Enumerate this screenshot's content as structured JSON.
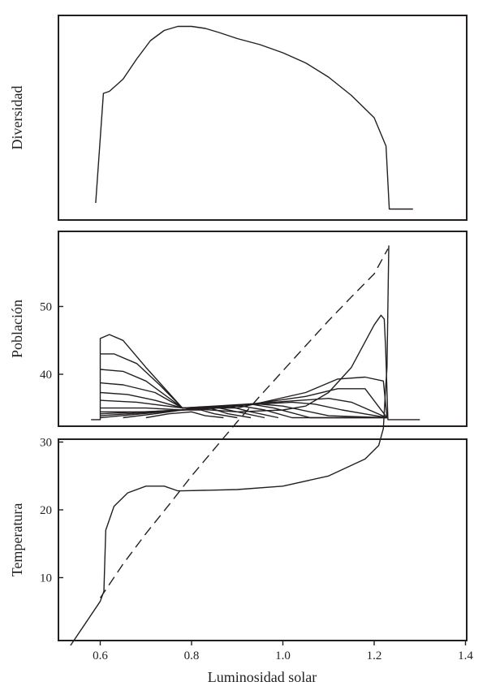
{
  "chart_data": [
    {
      "type": "line",
      "ylabel": "Diversidad",
      "xlabel": "",
      "xlim": [
        0.5,
        1.4
      ],
      "series": [
        {
          "style": "solid",
          "x": [
            0.59,
            0.607,
            0.62,
            0.65,
            0.68,
            0.71,
            0.74,
            0.77,
            0.8,
            0.83,
            0.86,
            0.9,
            0.95,
            1.0,
            1.05,
            1.1,
            1.15,
            1.2,
            1.226,
            1.233,
            1.25,
            1.285
          ],
          "y": [
            0.08,
            0.62,
            0.63,
            0.69,
            0.79,
            0.88,
            0.93,
            0.95,
            0.95,
            0.94,
            0.92,
            0.89,
            0.86,
            0.82,
            0.77,
            0.7,
            0.61,
            0.5,
            0.36,
            0.05,
            0.05,
            0.05
          ]
        }
      ]
    },
    {
      "type": "line",
      "ylabel": "Población",
      "xlabel": "",
      "xlim": [
        0.5,
        1.4
      ],
      "series": [
        {
          "x": [
            0.58,
            0.6,
            0.6,
            0.62,
            0.65,
            0.7,
            0.78,
            0.9,
            1.0,
            1.05,
            1.1,
            1.15,
            1.2,
            1.215,
            1.222,
            1.225,
            1.23,
            1.3
          ],
          "y": [
            0.03,
            0.03,
            0.45,
            0.47,
            0.44,
            0.3,
            0.09,
            0.07,
            0.08,
            0.1,
            0.17,
            0.3,
            0.52,
            0.57,
            0.55,
            0.4,
            0.03,
            0.03
          ]
        },
        {
          "x": [
            0.6,
            0.63,
            0.68,
            0.73,
            0.78,
            0.9,
            1.05,
            1.12,
            1.18,
            1.22,
            1.228
          ],
          "y": [
            0.37,
            0.37,
            0.32,
            0.21,
            0.09,
            0.09,
            0.17,
            0.24,
            0.25,
            0.23,
            0.04
          ]
        },
        {
          "x": [
            0.6,
            0.65,
            0.7,
            0.78,
            0.9,
            1.05,
            1.12,
            1.18,
            1.228
          ],
          "y": [
            0.29,
            0.28,
            0.23,
            0.09,
            0.1,
            0.15,
            0.19,
            0.19,
            0.04
          ]
        },
        {
          "x": [
            0.6,
            0.65,
            0.72,
            0.78,
            0.92,
            1.04,
            1.1,
            1.15,
            1.228
          ],
          "y": [
            0.22,
            0.21,
            0.17,
            0.09,
            0.11,
            0.13,
            0.14,
            0.12,
            0.04
          ]
        },
        {
          "x": [
            0.6,
            0.66,
            0.72,
            0.78,
            0.95,
            1.02,
            1.07,
            1.13,
            1.228
          ],
          "y": [
            0.17,
            0.16,
            0.13,
            0.09,
            0.11,
            0.12,
            0.11,
            0.08,
            0.04
          ]
        },
        {
          "x": [
            0.6,
            0.68,
            0.78,
            0.95,
            1.0,
            1.1,
            1.228
          ],
          "y": [
            0.13,
            0.12,
            0.09,
            0.11,
            0.1,
            0.05,
            0.04
          ]
        },
        {
          "x": [
            0.6,
            0.7,
            0.78,
            0.93,
            0.98,
            1.06,
            1.228
          ],
          "y": [
            0.09,
            0.09,
            0.08,
            0.11,
            0.09,
            0.04,
            0.04
          ]
        },
        {
          "x": [
            0.6,
            0.7,
            0.78,
            0.91,
            0.96,
            1.02,
            1.228
          ],
          "y": [
            0.07,
            0.07,
            0.08,
            0.1,
            0.08,
            0.04,
            0.04
          ]
        },
        {
          "x": [
            0.6,
            0.78,
            0.88,
            0.93,
            0.99
          ],
          "y": [
            0.06,
            0.08,
            0.1,
            0.07,
            0.04
          ]
        },
        {
          "x": [
            0.6,
            0.78,
            0.86,
            0.9,
            0.96
          ],
          "y": [
            0.05,
            0.08,
            0.09,
            0.07,
            0.04
          ]
        },
        {
          "x": [
            0.6,
            0.78,
            0.84,
            0.88,
            0.93
          ],
          "y": [
            0.04,
            0.08,
            0.09,
            0.06,
            0.04
          ]
        },
        {
          "x": [
            0.65,
            0.72,
            0.78,
            0.82,
            0.85,
            0.9
          ],
          "y": [
            0.04,
            0.06,
            0.08,
            0.08,
            0.06,
            0.04
          ]
        },
        {
          "x": [
            0.7,
            0.75,
            0.8,
            0.83,
            0.87
          ],
          "y": [
            0.04,
            0.06,
            0.07,
            0.05,
            0.04
          ]
        }
      ]
    },
    {
      "type": "line",
      "ylabel": "Temperatura",
      "xlabel": "Luminosidad solar",
      "xlim": [
        0.5,
        1.4
      ],
      "ylim": [
        0,
        59
      ],
      "xticks": [
        "0.6",
        "0.8",
        "1.0",
        "1.2",
        "1.4"
      ],
      "yticks": [
        "10",
        "20",
        "30",
        "40",
        "50"
      ],
      "series": [
        {
          "style": "solid",
          "x": [
            0.535,
            0.57,
            0.6,
            0.608,
            0.612,
            0.63,
            0.66,
            0.7,
            0.74,
            0.77,
            0.78,
            0.9,
            1.0,
            1.1,
            1.18,
            1.21,
            1.22,
            1.225,
            1.228,
            1.23,
            1.232
          ],
          "y": [
            0,
            3.5,
            6.5,
            8,
            17,
            20.5,
            22.5,
            23.5,
            23.5,
            22.8,
            22.8,
            23,
            23.5,
            25,
            27.5,
            29.5,
            32,
            38,
            41,
            50,
            59
          ]
        },
        {
          "style": "dashed",
          "x": [
            0.6,
            0.65,
            0.7,
            0.75,
            0.8,
            0.85,
            0.9,
            0.95,
            1.0,
            1.05,
            1.1,
            1.15,
            1.2,
            1.23
          ],
          "y": [
            7,
            12,
            16.5,
            20.7,
            25,
            29,
            33,
            36.8,
            40.5,
            44.2,
            47.9,
            51.4,
            54.8,
            58.5
          ]
        }
      ]
    }
  ]
}
